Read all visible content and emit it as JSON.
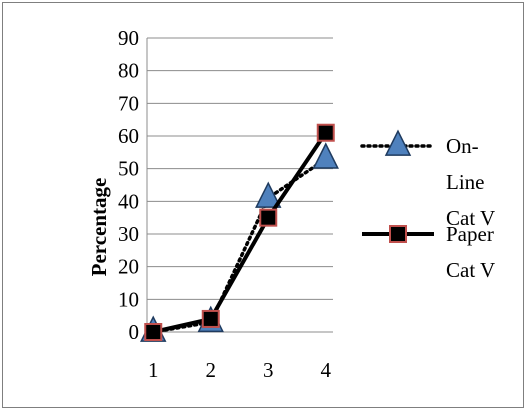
{
  "chart_data": {
    "type": "line",
    "title": "",
    "xlabel": "",
    "ylabel": "Percentage",
    "categories": [
      "1",
      "2",
      "3",
      "4"
    ],
    "ylim": [
      0,
      90
    ],
    "yticks": [
      "0",
      "10",
      "20",
      "30",
      "40",
      "50",
      "60",
      "70",
      "80",
      "90"
    ],
    "grid": true,
    "legend_position": "right",
    "series": [
      {
        "name": "On-Line Cat V",
        "legend_lines": [
          "On-",
          "Line",
          "Cat V"
        ],
        "values": [
          0,
          3,
          41,
          53
        ],
        "line_style": "dotted",
        "marker": "triangle",
        "marker_fill": "#4f81bd",
        "marker_stroke": "#1f3b5f"
      },
      {
        "name": "Paper Cat V",
        "legend_lines": [
          "Paper",
          "Cat V"
        ],
        "values": [
          0,
          4,
          35,
          61
        ],
        "line_style": "solid",
        "marker": "square",
        "marker_fill": "#000000",
        "marker_stroke": "#c0504d"
      }
    ]
  }
}
